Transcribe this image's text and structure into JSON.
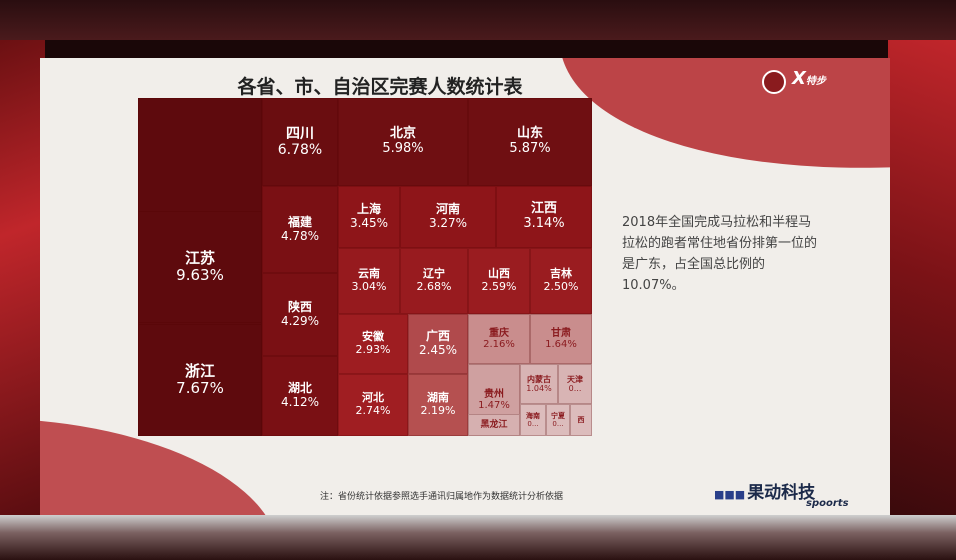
{
  "slide": {
    "title": "各省、市、自治区完赛人数统计表",
    "logo_right": "X",
    "logo_right_sub": "特步",
    "side_text": "2018年全国完成马拉松和半程马拉松的跑者常住地省份排第一位的是广东，占全国总比例的10.07%。",
    "footnote": "注：省份统计依据参照选手通讯归属地作为数据统计分析依据",
    "brand": "果动科技",
    "brand_sub": "spoorts",
    "brand_dots": "■■■"
  },
  "chart_data": {
    "type": "treemap",
    "title": "各省、市、自治区完赛人数统计表",
    "items": [
      {
        "name": "广东",
        "label": "10.07%",
        "value": 10.07
      },
      {
        "name": "江苏",
        "label": "9.63%",
        "value": 9.63
      },
      {
        "name": "浙江",
        "label": "7.67%",
        "value": 7.67
      },
      {
        "name": "四川",
        "label": "6.78%",
        "value": 6.78
      },
      {
        "name": "北京",
        "label": "5.98%",
        "value": 5.98
      },
      {
        "name": "山东",
        "label": "5.87%",
        "value": 5.87
      },
      {
        "name": "福建",
        "label": "4.78%",
        "value": 4.78
      },
      {
        "name": "陕西",
        "label": "4.29%",
        "value": 4.29
      },
      {
        "name": "湖北",
        "label": "4.12%",
        "value": 4.12
      },
      {
        "name": "上海",
        "label": "3.45%",
        "value": 3.45
      },
      {
        "name": "河南",
        "label": "3.27%",
        "value": 3.27
      },
      {
        "name": "江西",
        "label": "3.14%",
        "value": 3.14
      },
      {
        "name": "云南",
        "label": "3.04%",
        "value": 3.04
      },
      {
        "name": "辽宁",
        "label": "2.68%",
        "value": 2.68
      },
      {
        "name": "山西",
        "label": "2.59%",
        "value": 2.59
      },
      {
        "name": "吉林",
        "label": "2.50%",
        "value": 2.5
      },
      {
        "name": "安徽",
        "label": "2.93%",
        "value": 2.93
      },
      {
        "name": "广西",
        "label": "2.45%",
        "value": 2.45
      },
      {
        "name": "重庆",
        "label": "2.16%",
        "value": 2.16
      },
      {
        "name": "甘肃",
        "label": "1.64%",
        "value": 1.64
      },
      {
        "name": "河北",
        "label": "2.74%",
        "value": 2.74
      },
      {
        "name": "湖南",
        "label": "2.19%",
        "value": 2.19
      },
      {
        "name": "贵州",
        "label": "1.47%",
        "value": 1.47
      },
      {
        "name": "内蒙古",
        "label": "1.04%",
        "value": 1.04
      },
      {
        "name": "天津",
        "label": "0...",
        "value": null
      },
      {
        "name": "黑龙江",
        "label": "",
        "value": null
      },
      {
        "name": "海南",
        "label": "0...",
        "value": null
      },
      {
        "name": "宁夏",
        "label": "0...",
        "value": null
      },
      {
        "name": "西",
        "label": "",
        "value": null
      }
    ]
  }
}
